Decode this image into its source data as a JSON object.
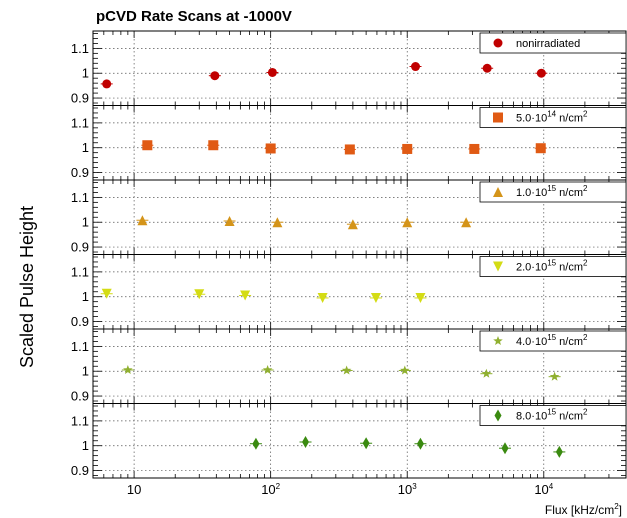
{
  "chart_data": {
    "type": "scatter",
    "title": "pCVD Rate Scans at -1000V",
    "ylabel": "Scaled Pulse Height",
    "xlabel": "Flux [kHz/cm",
    "xlabel_sup": "2",
    "xlabel_close": "]",
    "x_scale": "log",
    "xlim": [
      5,
      40000
    ],
    "ylim": [
      0.87,
      1.17
    ],
    "y_ticks": [
      {
        "v": 0.9,
        "label": "0.9"
      },
      {
        "v": 1.0,
        "label": "1"
      },
      {
        "v": 1.1,
        "label": "1.1"
      }
    ],
    "x_ticks": [
      {
        "v": 10,
        "base": "10",
        "exp": ""
      },
      {
        "v": 100,
        "base": "10",
        "exp": "2"
      },
      {
        "v": 1000,
        "base": "10",
        "exp": "3"
      },
      {
        "v": 10000,
        "base": "10",
        "exp": "4"
      }
    ],
    "grid": true,
    "legend_placement": "top-right",
    "series": [
      {
        "name": "nonirradiated",
        "legend_text": "nonirradiated",
        "legend_sup": "",
        "legend_tail": "",
        "marker": "circle",
        "color": "#c00000",
        "x": [
          6.3,
          39,
          103,
          1150,
          3850,
          9600
        ],
        "y": [
          0.957,
          0.99,
          1.003,
          1.027,
          1.02,
          1.0
        ]
      },
      {
        "name": "5.0·10^14 n/cm^2",
        "legend_text": "5.0·10",
        "legend_sup": "14",
        "legend_tail": " n/cm",
        "legend_tail_sup": "2",
        "marker": "square",
        "color": "#e05a14",
        "x": [
          12.5,
          38,
          100,
          380,
          1000,
          3100,
          9500
        ],
        "y": [
          1.01,
          1.01,
          0.997,
          0.993,
          0.995,
          0.995,
          0.998
        ]
      },
      {
        "name": "1.0·10^15 n/cm^2",
        "legend_text": "1.0·10",
        "legend_sup": "15",
        "legend_tail": " n/cm",
        "legend_tail_sup": "2",
        "marker": "triangle-up",
        "color": "#d49419",
        "x": [
          11.5,
          50,
          112,
          400,
          1000,
          2700
        ],
        "y": [
          1.008,
          1.005,
          1.0,
          0.992,
          1.0,
          1.0
        ]
      },
      {
        "name": "2.0·10^15 n/cm^2",
        "legend_text": "2.0·10",
        "legend_sup": "15",
        "legend_tail": " n/cm",
        "legend_tail_sup": "2",
        "marker": "triangle-down",
        "color": "#d4dc14",
        "x": [
          6.3,
          30,
          65,
          240,
          590,
          1250
        ],
        "y": [
          1.012,
          1.01,
          1.005,
          0.995,
          0.995,
          0.995
        ]
      },
      {
        "name": "4.0·10^15 n/cm^2",
        "legend_text": "4.0·10",
        "legend_sup": "15",
        "legend_tail": " n/cm",
        "legend_tail_sup": "2",
        "marker": "star",
        "color": "#90b030",
        "x": [
          9,
          95,
          360,
          960,
          3800,
          12000
        ],
        "y": [
          1.005,
          1.005,
          1.003,
          1.003,
          0.99,
          0.978
        ]
      },
      {
        "name": "8.0·10^15 n/cm^2",
        "legend_text": "8.0·10",
        "legend_sup": "15",
        "legend_tail": " n/cm",
        "legend_tail_sup": "2",
        "marker": "diamond",
        "color": "#3a8a10",
        "x": [
          78,
          180,
          500,
          1250,
          5200,
          13000
        ],
        "y": [
          1.008,
          1.015,
          1.01,
          1.008,
          0.99,
          0.975
        ]
      }
    ]
  }
}
